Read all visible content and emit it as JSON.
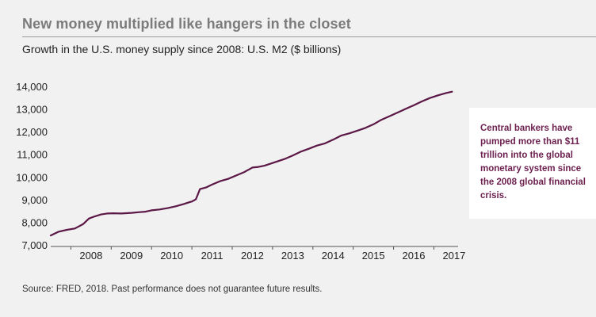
{
  "header": {
    "title": "New money multiplied like hangers in the closet",
    "subtitle": "Growth in the U.S. money supply since 2008: U.S. M2 ($ billions)"
  },
  "callout": {
    "text": "Central bankers have pumped more than $11 trillion into the global monetary system since the 2008 global financial crisis."
  },
  "footer": {
    "source": "Source: FRED, 2018. Past performance does not guarantee future results."
  },
  "colors": {
    "line": "#5b1745",
    "callout_text": "#6d2150",
    "background": "#f1f1f1"
  },
  "chart_data": {
    "type": "line",
    "title": "",
    "xlabel": "",
    "ylabel": "",
    "ylim": [
      7000,
      14000
    ],
    "xlim": [
      2007.5,
      2017.6
    ],
    "y_ticks": [
      7000,
      8000,
      9000,
      10000,
      11000,
      12000,
      13000,
      14000
    ],
    "y_tick_labels": [
      "7,000",
      "8,000",
      "9,000",
      "10,000",
      "11,000",
      "12,000",
      "13,000",
      "14,000"
    ],
    "x_ticks": [
      2008,
      2009,
      2010,
      2011,
      2012,
      2013,
      2014,
      2015,
      2016,
      2017
    ],
    "x_tick_labels": [
      "2008",
      "2009",
      "2010",
      "2011",
      "2012",
      "2013",
      "2014",
      "2015",
      "2016",
      "2017"
    ],
    "grid": false,
    "legend": "none",
    "series": [
      {
        "x": [
          2007.5,
          2007.7,
          2007.9,
          2008.1,
          2008.3,
          2008.45,
          2008.6,
          2008.75,
          2008.9,
          2009.05,
          2009.25,
          2009.5,
          2009.7,
          2009.85,
          2010.0,
          2010.2,
          2010.4,
          2010.6,
          2010.8,
          2010.95,
          2011.0,
          2011.1,
          2011.2,
          2011.35,
          2011.5,
          2011.7,
          2011.9,
          2012.1,
          2012.3,
          2012.5,
          2012.65,
          2012.8,
          2013.0,
          2013.3,
          2013.5,
          2013.7,
          2013.9,
          2014.1,
          2014.3,
          2014.5,
          2014.7,
          2014.9,
          2015.1,
          2015.3,
          2015.5,
          2015.7,
          2015.9,
          2016.1,
          2016.3,
          2016.5,
          2016.7,
          2016.9,
          2017.1,
          2017.3,
          2017.45
        ],
        "values": [
          7450,
          7620,
          7700,
          7760,
          7950,
          8200,
          8300,
          8380,
          8420,
          8430,
          8420,
          8450,
          8480,
          8500,
          8560,
          8600,
          8660,
          8740,
          8840,
          8930,
          8950,
          9050,
          9500,
          9570,
          9700,
          9850,
          9950,
          10100,
          10250,
          10450,
          10480,
          10530,
          10650,
          10830,
          10980,
          11150,
          11280,
          11420,
          11520,
          11680,
          11860,
          11960,
          12080,
          12200,
          12360,
          12560,
          12720,
          12880,
          13040,
          13200,
          13370,
          13520,
          13640,
          13740,
          13800
        ]
      }
    ]
  }
}
